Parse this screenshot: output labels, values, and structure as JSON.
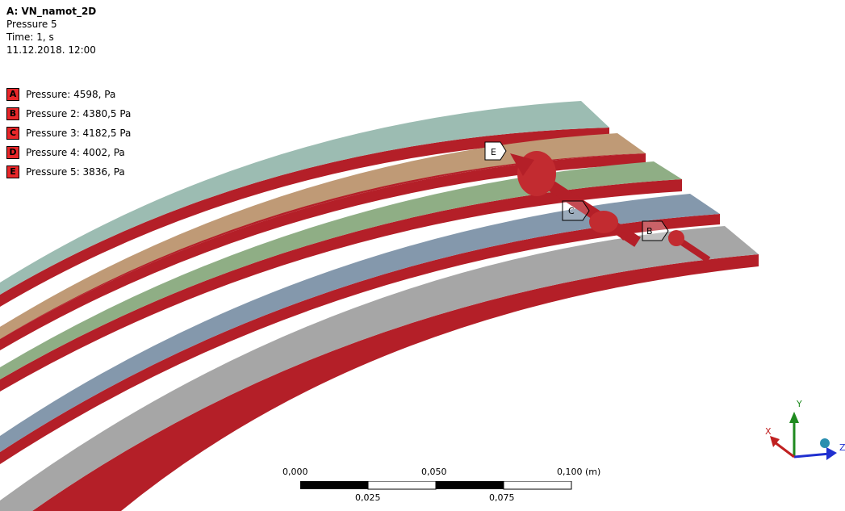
{
  "header": {
    "title": "A: VN_namot_2D",
    "subtitle": "Pressure 5",
    "time": "Time: 1, s",
    "date": "11.12.2018. 12:00"
  },
  "legend": [
    {
      "key": "A",
      "label": "Pressure: 4598, Pa"
    },
    {
      "key": "B",
      "label": "Pressure 2: 4380,5 Pa"
    },
    {
      "key": "C",
      "label": "Pressure 3: 4182,5 Pa"
    },
    {
      "key": "D",
      "label": "Pressure 4: 4002, Pa"
    },
    {
      "key": "E",
      "label": "Pressure 5: 3836, Pa"
    }
  ],
  "scene_labels": {
    "e": "E",
    "c": "C",
    "b": "B"
  },
  "scale_bar": {
    "top_labels": [
      "0,000",
      "0,050",
      "0,100 (m)"
    ],
    "bottom_labels": [
      "0,025",
      "0,075"
    ]
  },
  "triad": {
    "x": "X",
    "y": "Y",
    "z": "Z"
  },
  "colors": {
    "red": "#b41f28",
    "teal": "#9cbcb2",
    "tan": "#bf9a76",
    "green": "#8fae85",
    "blue": "#8498ac",
    "gray": "#a6a6a6",
    "badge": "#e8272a"
  }
}
